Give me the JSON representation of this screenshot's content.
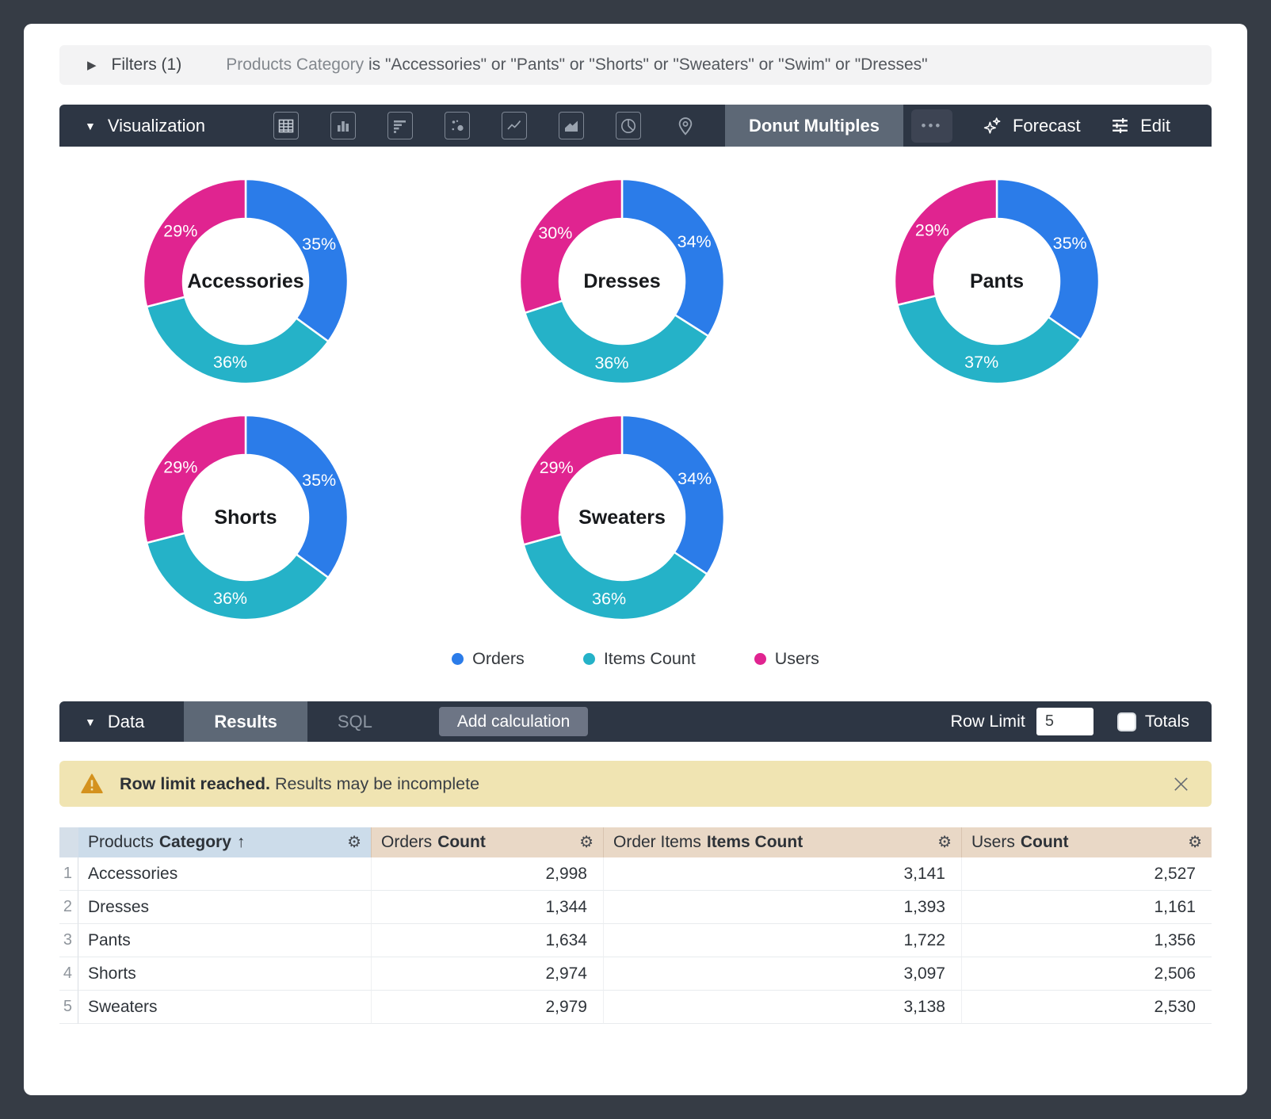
{
  "filters": {
    "chevron": "▶",
    "label": "Filters (1)",
    "field": "Products Category",
    "condition": " is \"Accessories\" or \"Pants\" or \"Shorts\" or \"Sweaters\" or \"Swim\" or \"Dresses\""
  },
  "viz_toolbar": {
    "caret": "▼",
    "label": "Visualization",
    "icon_types": [
      "table",
      "column-chart",
      "bar-chart",
      "scatter-chart",
      "line-chart",
      "area-chart",
      "pie-chart",
      "map-pin"
    ],
    "selected_type": "Donut Multiples",
    "more": "•••",
    "forecast_label": "Forecast",
    "edit_label": "Edit"
  },
  "chart_data": {
    "type": "pie",
    "subtype": "donut-multiples",
    "legend_position": "bottom",
    "series_legend": [
      {
        "name": "Orders",
        "color": "#2b7ce9"
      },
      {
        "name": "Items Count",
        "color": "#25b2c8"
      },
      {
        "name": "Users",
        "color": "#e02490"
      }
    ],
    "donuts": [
      {
        "title": "Accessories",
        "percents": [
          35,
          36,
          29
        ]
      },
      {
        "title": "Dresses",
        "percents": [
          34,
          36,
          30
        ]
      },
      {
        "title": "Pants",
        "percents": [
          35,
          37,
          29
        ]
      },
      {
        "title": "Shorts",
        "percents": [
          35,
          36,
          29
        ]
      },
      {
        "title": "Sweaters",
        "percents": [
          34,
          36,
          29
        ]
      }
    ]
  },
  "data_toolbar": {
    "caret": "▼",
    "label": "Data",
    "results_tab": "Results",
    "sql_tab": "SQL",
    "add_calculation": "Add calculation",
    "row_limit_label": "Row Limit",
    "row_limit_value": "5",
    "totals_label": "Totals",
    "totals_checked": false
  },
  "warning": {
    "bold": "Row limit reached.",
    "text": " Results may be incomplete"
  },
  "table": {
    "headers": [
      {
        "prefix": "Products",
        "bold": "Category",
        "sort": "↑"
      },
      {
        "prefix": "Orders",
        "bold": "Count",
        "sort": ""
      },
      {
        "prefix": "Order Items",
        "bold": "Items Count",
        "sort": ""
      },
      {
        "prefix": "Users",
        "bold": "Count",
        "sort": ""
      }
    ],
    "rows": [
      {
        "num": "1",
        "category": "Accessories",
        "orders": "2,998",
        "items": "3,141",
        "users": "2,527"
      },
      {
        "num": "2",
        "category": "Dresses",
        "orders": "1,344",
        "items": "1,393",
        "users": "1,161"
      },
      {
        "num": "3",
        "category": "Pants",
        "orders": "1,634",
        "items": "1,722",
        "users": "1,356"
      },
      {
        "num": "4",
        "category": "Shorts",
        "orders": "2,974",
        "items": "3,097",
        "users": "2,506"
      },
      {
        "num": "5",
        "category": "Sweaters",
        "orders": "2,979",
        "items": "3,138",
        "users": "2,530"
      }
    ]
  },
  "colors": {
    "frame": "#363c45",
    "toolbar": "#2d3644",
    "selected_tab": "#5d6876",
    "warning_bg": "#f0e4b2",
    "warning_icon": "#d4921e",
    "header_dim_bg": "#ccdcea",
    "header_measure_bg": "#e9d8c6",
    "stripe_gray": "#f1f4f6",
    "stripe_peach": "#f6ede4"
  }
}
